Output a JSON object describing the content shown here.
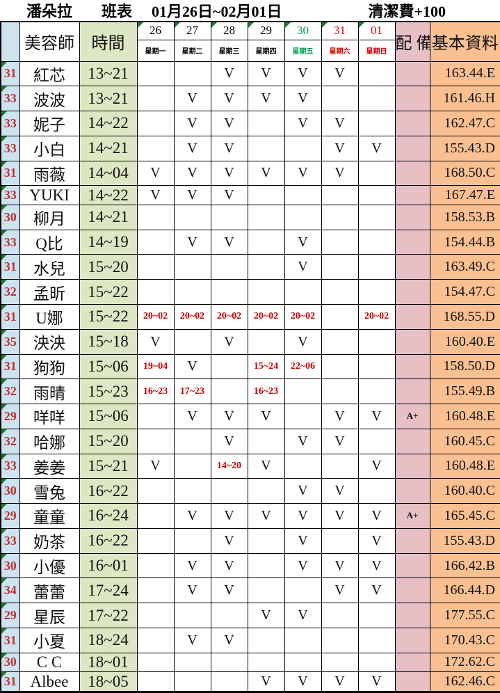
{
  "title": {
    "salon_name": "潘朵拉",
    "schedule_label": "班表",
    "date_range": "01月26日~02月01日",
    "fee_note": "清潔費+100"
  },
  "header": {
    "beautician": "美容師",
    "time": "時間",
    "equip": "配 備",
    "info": "基本資料",
    "days": [
      {
        "date": "26",
        "weekday": "星期一",
        "color": "#000000"
      },
      {
        "date": "27",
        "weekday": "星期二",
        "color": "#000000"
      },
      {
        "date": "28",
        "weekday": "星期三",
        "color": "#000000"
      },
      {
        "date": "29",
        "weekday": "星期四",
        "color": "#000000"
      },
      {
        "date": "30",
        "weekday": "星期五",
        "color": "#00a04e"
      },
      {
        "date": "31",
        "weekday": "星期六",
        "color": "#dd0000"
      },
      {
        "date": "01",
        "weekday": "星期日",
        "color": "#dd0000"
      }
    ]
  },
  "rows": [
    {
      "num": "31",
      "name": "紅芯",
      "time": "13~21",
      "days": [
        "",
        "",
        "V",
        "V",
        "V",
        "V",
        ""
      ],
      "equip": "",
      "info": "163.44.E"
    },
    {
      "num": "33",
      "name": "波波",
      "time": "13~21",
      "days": [
        "",
        "V",
        "V",
        "V",
        "V",
        "",
        ""
      ],
      "equip": "",
      "info": "161.46.H"
    },
    {
      "num": "33",
      "name": "妮子",
      "time": "14~22",
      "days": [
        "",
        "V",
        "V",
        "",
        "V",
        "V",
        ""
      ],
      "equip": "",
      "info": "162.47.C"
    },
    {
      "num": "33",
      "name": "小白",
      "time": "14~21",
      "days": [
        "",
        "V",
        "V",
        "",
        "",
        "V",
        "V"
      ],
      "equip": "",
      "info": "155.43.D"
    },
    {
      "num": "31",
      "name": "雨薇",
      "time": "14~04",
      "days": [
        "V",
        "V",
        "V",
        "V",
        "V",
        "V",
        ""
      ],
      "equip": "",
      "info": "168.50.C"
    },
    {
      "num": "33",
      "name": "YUKI",
      "time": "14~22",
      "days": [
        "V",
        "V",
        "V",
        "",
        "",
        "",
        ""
      ],
      "equip": "",
      "info": "167.47.E"
    },
    {
      "num": "30",
      "name": "柳月",
      "time": "14~21",
      "days": [
        "",
        "",
        "",
        "",
        "",
        "",
        ""
      ],
      "equip": "",
      "info": "158.53.B"
    },
    {
      "num": "33",
      "name": "Q比",
      "time": "14~19",
      "days": [
        "",
        "V",
        "V",
        "",
        "V",
        "",
        ""
      ],
      "equip": "",
      "info": "154.44.B"
    },
    {
      "num": "31",
      "name": "水兒",
      "time": "15~20",
      "days": [
        "",
        "",
        "",
        "",
        "V",
        "",
        ""
      ],
      "equip": "",
      "info": "163.49.C"
    },
    {
      "num": "32",
      "name": "孟昕",
      "time": "15~22",
      "days": [
        "",
        "",
        "",
        "",
        "",
        "",
        ""
      ],
      "equip": "",
      "info": "154.47.C"
    },
    {
      "num": "31",
      "name": "U娜",
      "time": "15~22",
      "days": [
        "20~02",
        "20~02",
        "20~02",
        "20~02",
        "20~02",
        "",
        "20~02"
      ],
      "equip": "",
      "info": "168.55.D"
    },
    {
      "num": "35",
      "name": "泱泱",
      "time": "15~18",
      "days": [
        "V",
        "",
        "V",
        "",
        "V",
        "",
        ""
      ],
      "equip": "",
      "info": "160.40.E"
    },
    {
      "num": "31",
      "name": "狗狗",
      "time": "15~06",
      "days": [
        "19~04",
        "V",
        "",
        "15~24",
        "22~06",
        "",
        ""
      ],
      "equip": "",
      "info": "158.50.D"
    },
    {
      "num": "32",
      "name": "雨晴",
      "time": "15~23",
      "days": [
        "16~23",
        "17~23",
        "",
        "16~23",
        "",
        "",
        ""
      ],
      "equip": "",
      "info": "155.49.B"
    },
    {
      "num": "29",
      "name": "咩咩",
      "time": "15~06",
      "days": [
        "",
        "V",
        "V",
        "V",
        "",
        "V",
        "V"
      ],
      "equip": "A+",
      "info": "160.48.E"
    },
    {
      "num": "32",
      "name": "哈娜",
      "time": "15~20",
      "days": [
        "",
        "",
        "V",
        "",
        "V",
        "V",
        ""
      ],
      "equip": "",
      "info": "160.45.C"
    },
    {
      "num": "33",
      "name": "姜姜",
      "time": "15~21",
      "days": [
        "V",
        "",
        "14~20",
        "V",
        "",
        "",
        "V"
      ],
      "equip": "",
      "info": "160.48.E"
    },
    {
      "num": "30",
      "name": "雪兔",
      "time": "16~22",
      "days": [
        "",
        "",
        "",
        "",
        "V",
        "V",
        ""
      ],
      "equip": "",
      "info": "160.40.C"
    },
    {
      "num": "29",
      "name": "童童",
      "time": "16~24",
      "days": [
        "",
        "V",
        "V",
        "V",
        "V",
        "V",
        "V"
      ],
      "equip": "A+",
      "info": "165.45.C"
    },
    {
      "num": "33",
      "name": "奶茶",
      "time": "16~22",
      "days": [
        "",
        "",
        "V",
        "",
        "V",
        "",
        "V"
      ],
      "equip": "",
      "info": "155.43.D"
    },
    {
      "num": "30",
      "name": "小優",
      "time": "16~01",
      "days": [
        "",
        "V",
        "V",
        "",
        "V",
        "V",
        "V"
      ],
      "equip": "",
      "info": "166.42.B"
    },
    {
      "num": "34",
      "name": "蕾蕾",
      "time": "17~24",
      "days": [
        "",
        "V",
        "V",
        "",
        "",
        "V",
        "V"
      ],
      "equip": "",
      "info": "166.44.D"
    },
    {
      "num": "29",
      "name": "星辰",
      "time": "17~22",
      "days": [
        "",
        "",
        "",
        "V",
        "V",
        "",
        ""
      ],
      "equip": "",
      "info": "177.55.C"
    },
    {
      "num": "31",
      "name": "小夏",
      "time": "18~24",
      "days": [
        "",
        "V",
        "V",
        "",
        "",
        "",
        ""
      ],
      "equip": "",
      "info": "170.43.C"
    },
    {
      "num": "30",
      "name": "C C",
      "time": "18~01",
      "days": [
        "",
        "",
        "",
        "",
        "",
        "",
        ""
      ],
      "equip": "",
      "info": "172.62.C"
    },
    {
      "num": "31",
      "name": "Albee",
      "time": "18~05",
      "days": [
        "",
        "",
        "",
        "V",
        "V",
        "V",
        "V"
      ],
      "equip": "",
      "info": "162.46.C"
    },
    {
      "num": "",
      "name": "",
      "time": "",
      "days": [
        "",
        "",
        "",
        "",
        "",
        "",
        ""
      ],
      "equip": "",
      "info": ""
    }
  ],
  "colors": {
    "num_col_bg": "#cde4f0",
    "time_col_bg": "#dde7c4",
    "equip_col_bg": "#e6c0c4",
    "info_col_bg": "#fac091",
    "red_text": "#cc0000",
    "num_red": "#c03030",
    "green_text": "#00a04e",
    "corner_triangle": "#1e7a2e"
  }
}
